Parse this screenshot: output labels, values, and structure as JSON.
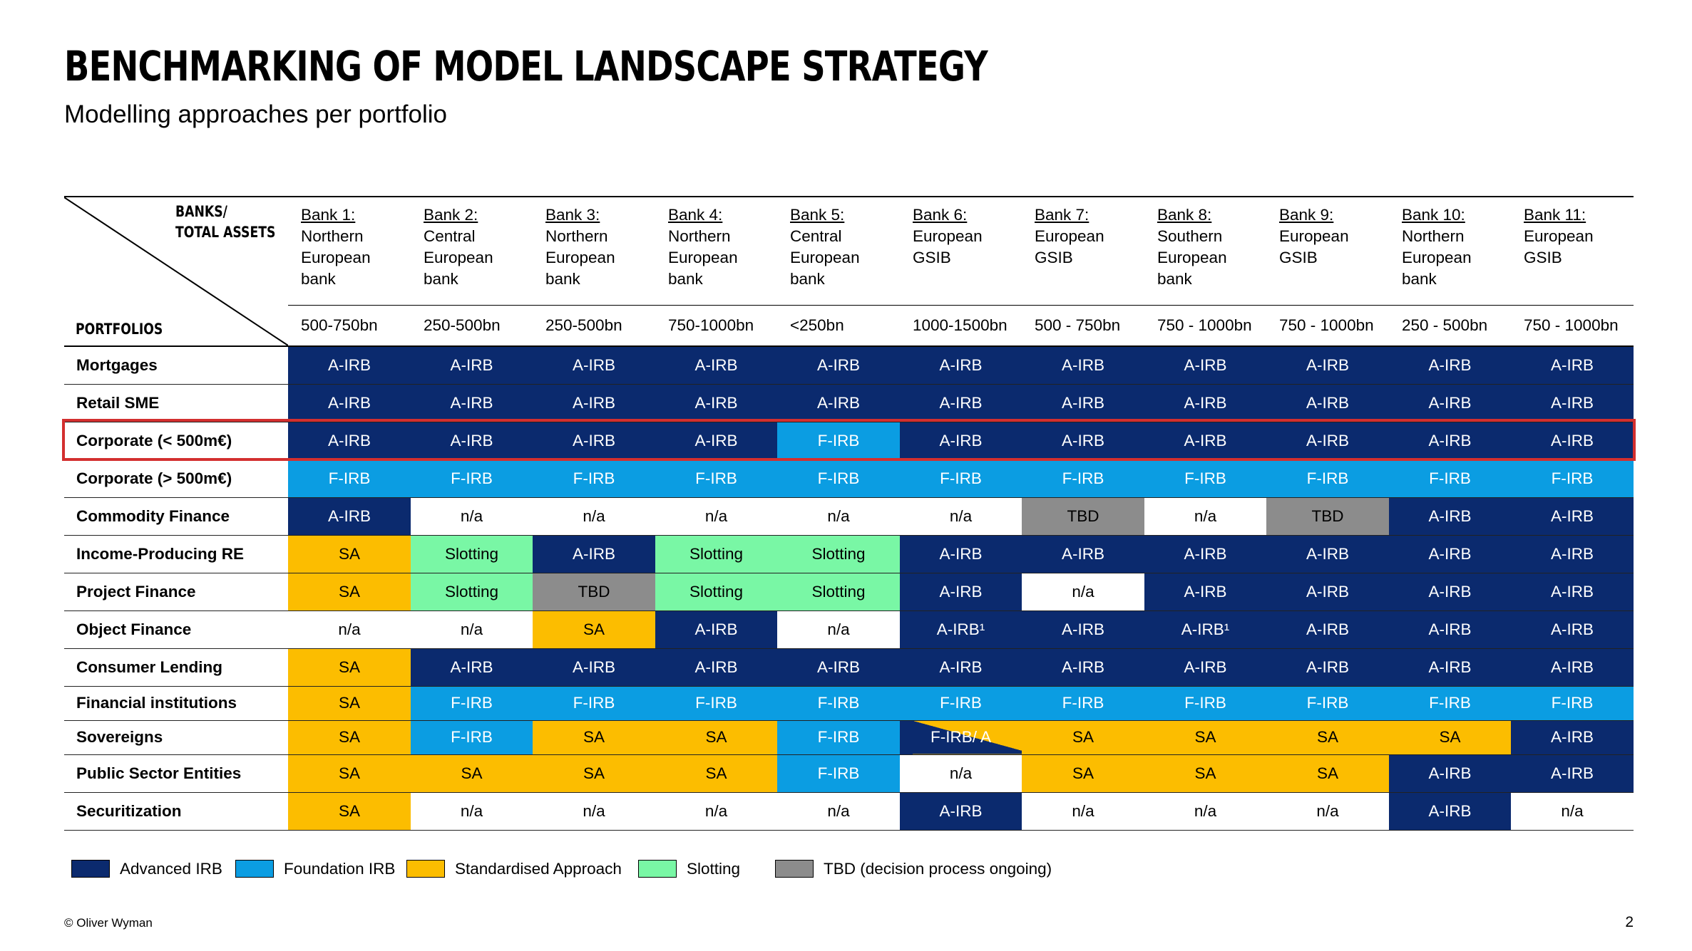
{
  "title": "BENCHMARKING OF MODEL LANDSCAPE STRATEGY",
  "subtitle": "Modelling approaches per portfolio",
  "header": {
    "banks_label_1": "BANKS/",
    "banks_label_2": "TOTAL ASSETS",
    "portfolios_label": "PORTFOLIOS"
  },
  "banks": [
    {
      "name": "Bank 1:",
      "desc": [
        "Northern",
        "European",
        "bank"
      ],
      "assets": "500-750bn"
    },
    {
      "name": "Bank 2:",
      "desc": [
        "Central",
        "European",
        "bank"
      ],
      "assets": "250-500bn"
    },
    {
      "name": "Bank 3:",
      "desc": [
        "Northern",
        "European",
        "bank"
      ],
      "assets": "250-500bn"
    },
    {
      "name": "Bank 4:",
      "desc": [
        "Northern",
        "European",
        "bank"
      ],
      "assets": "750-1000bn"
    },
    {
      "name": "Bank 5:",
      "desc": [
        "Central",
        "European",
        "bank"
      ],
      "assets": "<250bn"
    },
    {
      "name": "Bank 6:",
      "desc": [
        "European",
        "GSIB"
      ],
      "assets": "1000-1500bn"
    },
    {
      "name": "Bank 7:",
      "desc": [
        "European",
        "GSIB"
      ],
      "assets": "500 - 750bn"
    },
    {
      "name": "Bank 8:",
      "desc": [
        "Southern",
        "European",
        "bank"
      ],
      "assets": "750 - 1000bn"
    },
    {
      "name": "Bank 9:",
      "desc": [
        "European",
        "GSIB"
      ],
      "assets": "750 - 1000bn"
    },
    {
      "name": "Bank 10:",
      "desc": [
        "Northern",
        "European",
        "bank"
      ],
      "assets": "250 - 500bn"
    },
    {
      "name": "Bank 11:",
      "desc": [
        "European",
        "GSIB"
      ],
      "assets": "750 - 1000bn"
    }
  ],
  "rows": [
    {
      "label": "Mortgages",
      "cells": [
        "A-IRB",
        "A-IRB",
        "A-IRB",
        "A-IRB",
        "A-IRB",
        "A-IRB",
        "A-IRB",
        "A-IRB",
        "A-IRB",
        "A-IRB",
        "A-IRB"
      ],
      "types": [
        "airb",
        "airb",
        "airb",
        "airb",
        "airb",
        "airb",
        "airb",
        "airb",
        "airb",
        "airb",
        "airb"
      ]
    },
    {
      "label": "Retail SME",
      "cells": [
        "A-IRB",
        "A-IRB",
        "A-IRB",
        "A-IRB",
        "A-IRB",
        "A-IRB",
        "A-IRB",
        "A-IRB",
        "A-IRB",
        "A-IRB",
        "A-IRB"
      ],
      "types": [
        "airb",
        "airb",
        "airb",
        "airb",
        "airb",
        "airb",
        "airb",
        "airb",
        "airb",
        "airb",
        "airb"
      ]
    },
    {
      "label": "Corporate (< 500m€)",
      "highlight": true,
      "cells": [
        "A-IRB",
        "A-IRB",
        "A-IRB",
        "A-IRB",
        "F-IRB",
        "A-IRB",
        "A-IRB",
        "A-IRB",
        "A-IRB",
        "A-IRB",
        "A-IRB"
      ],
      "types": [
        "airb",
        "airb",
        "airb",
        "airb",
        "firb",
        "airb",
        "airb",
        "airb",
        "airb",
        "airb",
        "airb"
      ]
    },
    {
      "label": "Corporate (> 500m€)",
      "cells": [
        "F-IRB",
        "F-IRB",
        "F-IRB",
        "F-IRB",
        "F-IRB",
        "F-IRB",
        "F-IRB",
        "F-IRB",
        "F-IRB",
        "F-IRB",
        "F-IRB"
      ],
      "types": [
        "firb",
        "firb",
        "firb",
        "firb",
        "firb",
        "firb",
        "firb",
        "firb",
        "firb",
        "firb",
        "firb"
      ]
    },
    {
      "label": "Commodity Finance",
      "cells": [
        "A-IRB",
        "n/a",
        "n/a",
        "n/a",
        "n/a",
        "n/a",
        "TBD",
        "n/a",
        "TBD",
        "A-IRB",
        "A-IRB"
      ],
      "types": [
        "airb",
        "na",
        "na",
        "na",
        "na",
        "na",
        "tbd",
        "na",
        "tbd",
        "airb",
        "airb"
      ]
    },
    {
      "label": "Income-Producing RE",
      "cells": [
        "SA",
        "Slotting",
        "A-IRB",
        "Slotting",
        "Slotting",
        "A-IRB",
        "A-IRB",
        "A-IRB",
        "A-IRB",
        "A-IRB",
        "A-IRB"
      ],
      "types": [
        "sa",
        "slot",
        "airb",
        "slot",
        "slot",
        "airb",
        "airb",
        "airb",
        "airb",
        "airb",
        "airb"
      ]
    },
    {
      "label": "Project Finance",
      "cells": [
        "SA",
        "Slotting",
        "TBD",
        "Slotting",
        "Slotting",
        "A-IRB",
        "n/a",
        "A-IRB",
        "A-IRB",
        "A-IRB",
        "A-IRB"
      ],
      "types": [
        "sa",
        "slot",
        "tbd",
        "slot",
        "slot",
        "airb",
        "na",
        "airb",
        "airb",
        "airb",
        "airb"
      ]
    },
    {
      "label": "Object Finance",
      "cells": [
        "n/a",
        "n/a",
        "SA",
        "A-IRB",
        "n/a",
        "A-IRB¹",
        "A-IRB",
        "A-IRB¹",
        "A-IRB",
        "A-IRB",
        "A-IRB"
      ],
      "types": [
        "na",
        "na",
        "sa",
        "airb",
        "na",
        "airb",
        "airb",
        "airb",
        "airb",
        "airb",
        "airb"
      ]
    },
    {
      "label": "Consumer Lending",
      "cells": [
        "SA",
        "A-IRB",
        "A-IRB",
        "A-IRB",
        "A-IRB",
        "A-IRB",
        "A-IRB",
        "A-IRB",
        "A-IRB",
        "A-IRB",
        "A-IRB"
      ],
      "types": [
        "sa",
        "airb",
        "airb",
        "airb",
        "airb",
        "airb",
        "airb",
        "airb",
        "airb",
        "airb",
        "airb"
      ]
    },
    {
      "label": "Financial institutions",
      "cells": [
        "SA",
        "F-IRB",
        "F-IRB",
        "F-IRB",
        "F-IRB",
        "F-IRB",
        "F-IRB",
        "F-IRB",
        "F-IRB",
        "F-IRB",
        "F-IRB"
      ],
      "types": [
        "sa",
        "firb",
        "firb",
        "firb",
        "firb",
        "firb",
        "firb",
        "firb",
        "firb",
        "firb",
        "firb"
      ]
    },
    {
      "label": "Sovereigns",
      "cells": [
        "SA",
        "F-IRB",
        "SA",
        "SA",
        "F-IRB",
        "F-IRB/ A",
        "SA",
        "SA",
        "SA",
        "SA",
        "A-IRB"
      ],
      "types": [
        "sa",
        "firb",
        "sa",
        "sa",
        "firb",
        "split",
        "sa",
        "sa",
        "sa",
        "sa",
        "airb"
      ]
    },
    {
      "label": "Public Sector Entities",
      "cells": [
        "SA",
        "SA",
        "SA",
        "SA",
        "F-IRB",
        "n/a",
        "SA",
        "SA",
        "SA",
        "A-IRB",
        "A-IRB"
      ],
      "types": [
        "sa",
        "sa",
        "sa",
        "sa",
        "firb",
        "na",
        "sa",
        "sa",
        "sa",
        "airb",
        "airb"
      ]
    },
    {
      "label": "Securitization",
      "cells": [
        "SA",
        "n/a",
        "n/a",
        "n/a",
        "n/a",
        "A-IRB",
        "n/a",
        "n/a",
        "n/a",
        "A-IRB",
        "n/a"
      ],
      "types": [
        "sa",
        "na",
        "na",
        "na",
        "na",
        "airb",
        "na",
        "na",
        "na",
        "airb",
        "na"
      ]
    }
  ],
  "legend": [
    {
      "label": "Advanced IRB",
      "color": "#0b2a6e"
    },
    {
      "label": "Foundation IRB",
      "color": "#0b9de2"
    },
    {
      "label": "Standardised Approach",
      "color": "#fcbd00"
    },
    {
      "label": "Slotting",
      "color": "#79f7a5"
    },
    {
      "label": "TBD (decision process ongoing)",
      "color": "#8c8c8c"
    }
  ],
  "footer": "© Oliver Wyman",
  "page_number": "2"
}
